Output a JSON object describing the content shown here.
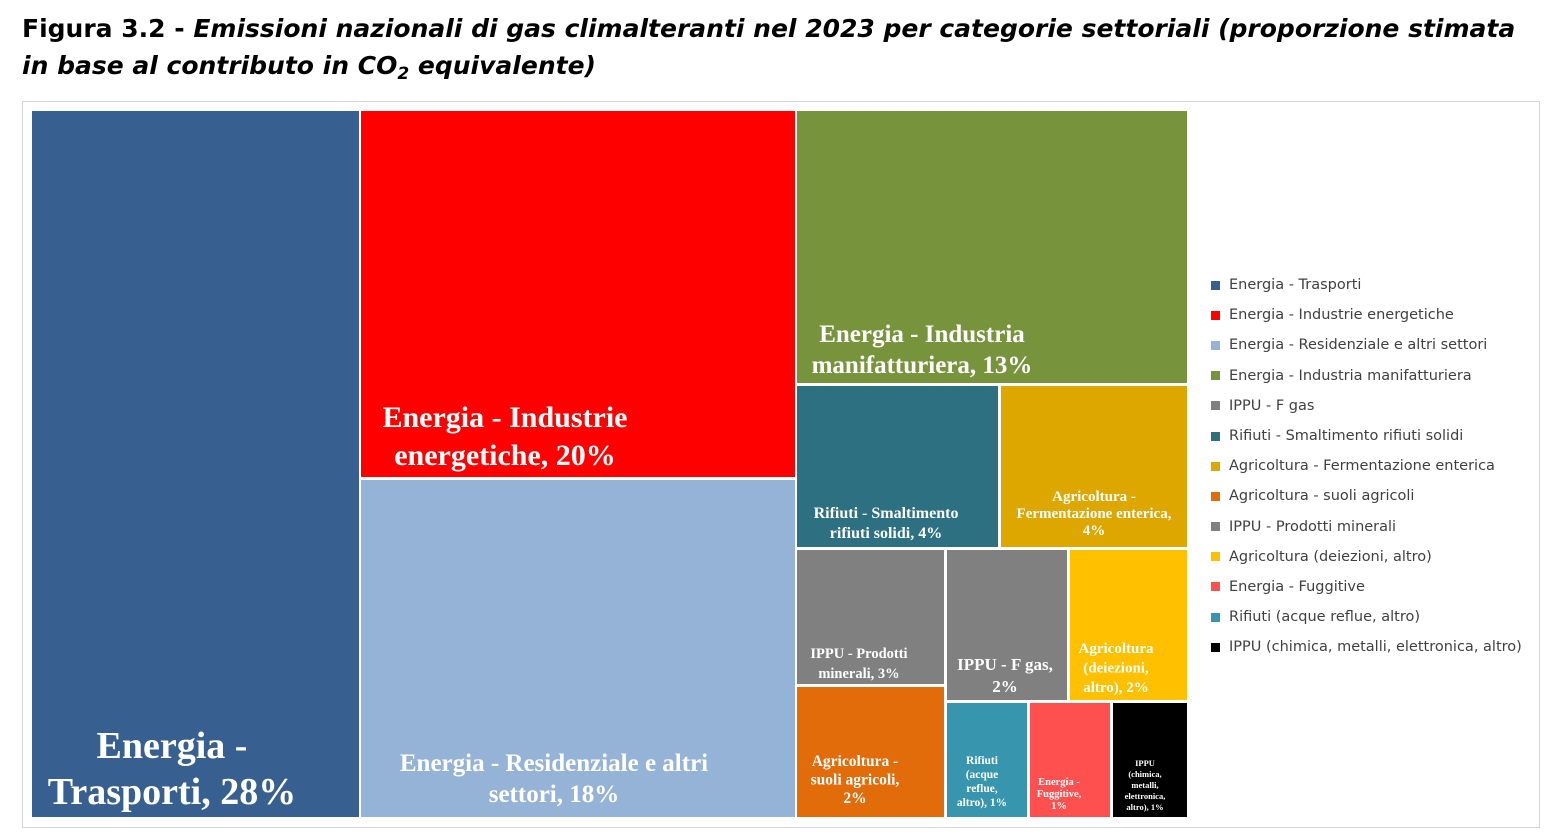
{
  "title": {
    "prefix": "Figura 3.2 - ",
    "text_before_sub": "Emissioni nazionali di gas climalteranti nel 2023 per categorie settoriali (proporzione stimata in base al contributo in CO",
    "subscript": "2",
    "text_after_sub": " equivalente)"
  },
  "chart_data": {
    "type": "treemap",
    "title": "Figura 3.2 - Emissioni nazionali di gas climalteranti nel 2023 per categorie settoriali (proporzione stimata in base al contributo in CO2 equivalente)",
    "unit": "%",
    "legend_position": "right",
    "items": [
      {
        "name": "Energia - Trasporti",
        "value": 28,
        "label_lines": [
          "Energia -",
          "Trasporti, 28%"
        ],
        "color": "#375F8F"
      },
      {
        "name": "Energia - Industrie energetiche",
        "value": 20,
        "label_lines": [
          "Energia - Industrie",
          "energetiche, 20%"
        ],
        "color": "#FF0000"
      },
      {
        "name": "Energia - Residenziale e altri settori",
        "value": 18,
        "label_lines": [
          "Energia - Residenziale e altri",
          "settori, 18%"
        ],
        "color": "#95B3D7"
      },
      {
        "name": "Energia - Industria manifatturiera",
        "value": 13,
        "label_lines": [
          "Energia - Industria",
          "manifatturiera, 13%"
        ],
        "color": "#77933C"
      },
      {
        "name": "Rifiuti - Smaltimento rifiuti solidi",
        "value": 4,
        "label_lines": [
          "Rifiuti - Smaltimento",
          "rifiuti solidi, 4%"
        ],
        "color": "#2C7082"
      },
      {
        "name": "Agricoltura - Fermentazione enterica",
        "value": 4,
        "label_lines": [
          "Agricoltura -",
          "Fermentazione enterica,",
          "4%"
        ],
        "color": "#DDA700"
      },
      {
        "name": "IPPU - Prodotti minerali",
        "value": 3,
        "label_lines": [
          "IPPU - Prodotti",
          "minerali, 3%"
        ],
        "color": "#808080"
      },
      {
        "name": "IPPU - F gas",
        "value": 2,
        "label_lines": [
          "IPPU - F gas,",
          "2%"
        ],
        "color": "#808080"
      },
      {
        "name": "Agricoltura (deiezioni, altro)",
        "value": 2,
        "label_lines": [
          "Agricoltura",
          "(deiezioni,",
          "altro), 2%"
        ],
        "color": "#FFC000"
      },
      {
        "name": "Agricoltura - suoli agricoli",
        "value": 2,
        "label_lines": [
          "Agricoltura -",
          "suoli agricoli,",
          "2%"
        ],
        "color": "#E26B0A"
      },
      {
        "name": "Rifiuti (acque reflue, altro)",
        "value": 1,
        "label_lines": [
          "Rifiuti",
          "(acque",
          "reflue,",
          "altro), 1%"
        ],
        "color": "#3795AE"
      },
      {
        "name": "Energia - Fuggitive",
        "value": 1,
        "label_lines": [
          "Energia -",
          "Fuggitive,",
          "1%"
        ],
        "color": "#FF5050"
      },
      {
        "name": "IPPU (chimica, metalli, elettronica, altro)",
        "value": 1,
        "label_lines": [
          "IPPU",
          "(chimica,",
          "metalli,",
          "elettronica,",
          "altro), 1%"
        ],
        "color": "#000000"
      }
    ],
    "legend": [
      {
        "label": "Energia - Trasporti",
        "color": "#375F8F"
      },
      {
        "label": "Energia - Industrie energetiche",
        "color": "#FF0000"
      },
      {
        "label": "Energia - Residenziale e altri settori",
        "color": "#95B3D7"
      },
      {
        "label": "Energia - Industria manifatturiera",
        "color": "#77933C"
      },
      {
        "label": "IPPU - F gas",
        "color": "#808080"
      },
      {
        "label": "Rifiuti - Smaltimento rifiuti solidi",
        "color": "#2C7082"
      },
      {
        "label": "Agricoltura - Fermentazione enterica",
        "color": "#DDA700"
      },
      {
        "label": "Agricoltura - suoli agricoli",
        "color": "#E26B0A"
      },
      {
        "label": "IPPU - Prodotti minerali",
        "color": "#808080"
      },
      {
        "label": "Agricoltura (deiezioni, altro)",
        "color": "#FFC000"
      },
      {
        "label": "Energia - Fuggitive",
        "color": "#FF5050"
      },
      {
        "label": "Rifiuti (acque reflue, altro)",
        "color": "#3795AE"
      },
      {
        "label": "IPPU (chimica, metalli, elettronica, altro)",
        "color": "#000000"
      }
    ]
  }
}
